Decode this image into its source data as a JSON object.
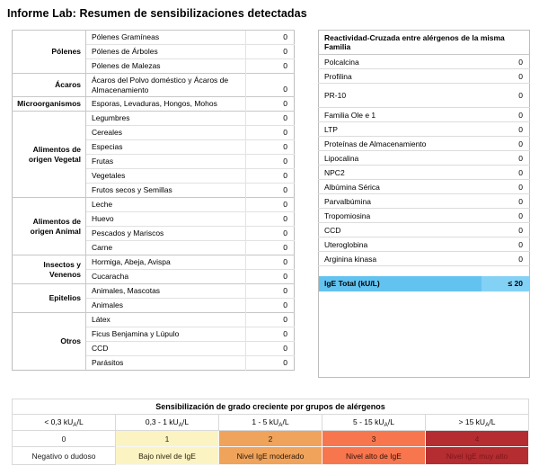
{
  "title": "Informe Lab: Resumen de sensibilizaciones detectadas",
  "allergen_table": {
    "groups": [
      {
        "name": "Pólenes",
        "items": [
          {
            "label": "Pólenes Gramíneas",
            "value": "0"
          },
          {
            "label": "Pólenes de Árboles",
            "value": "0"
          },
          {
            "label": "Pólenes de Malezas",
            "value": "0"
          }
        ]
      },
      {
        "name": "Ácaros",
        "items": [
          {
            "label": "Ácaros del Polvo doméstico y Ácaros de Almacenamiento",
            "value": "0",
            "tall": true
          }
        ]
      },
      {
        "name": "Microorganismos",
        "items": [
          {
            "label": "Esporas, Levaduras, Hongos, Mohos",
            "value": "0"
          }
        ]
      },
      {
        "name": "Alimentos de origen Vegetal",
        "items": [
          {
            "label": "Legumbres",
            "value": "0"
          },
          {
            "label": "Cereales",
            "value": "0"
          },
          {
            "label": "Especias",
            "value": "0"
          },
          {
            "label": "Frutas",
            "value": "0"
          },
          {
            "label": "Vegetales",
            "value": "0"
          },
          {
            "label": "Frutos secos y Semillas",
            "value": "0"
          }
        ]
      },
      {
        "name": "Alimentos de origen Animal",
        "items": [
          {
            "label": "Leche",
            "value": "0"
          },
          {
            "label": "Huevo",
            "value": "0"
          },
          {
            "label": "Pescados y Mariscos",
            "value": "0"
          },
          {
            "label": "Carne",
            "value": "0"
          }
        ]
      },
      {
        "name": "Insectos y Venenos",
        "items": [
          {
            "label": "Hormiga, Abeja, Avispa",
            "value": "0"
          },
          {
            "label": "Cucaracha",
            "value": "0"
          }
        ]
      },
      {
        "name": "Epitelios",
        "items": [
          {
            "label": "Animales, Mascotas",
            "value": "0"
          },
          {
            "label": "Animales",
            "value": "0"
          }
        ]
      },
      {
        "name": "Otros",
        "items": [
          {
            "label": "Látex",
            "value": "0"
          },
          {
            "label": "Ficus Benjamina y Lúpulo",
            "value": "0"
          },
          {
            "label": "CCD",
            "value": "0"
          },
          {
            "label": "Parásitos",
            "value": "0"
          }
        ]
      }
    ]
  },
  "cross_reactivity_table": {
    "header": "Reactividad-Cruzada entre alérgenos de la misma Familia",
    "rows": [
      {
        "label": "Polcalcina",
        "value": "0"
      },
      {
        "label": "Profilina",
        "value": "0"
      },
      {
        "label": "PR-10",
        "value": "0",
        "tall": true
      },
      {
        "label": "Familia Ole e 1",
        "value": "0"
      },
      {
        "label": "LTP",
        "value": "0"
      },
      {
        "label": "Proteínas de Almacenamiento",
        "value": "0"
      },
      {
        "label": "Lipocalina",
        "value": "0"
      },
      {
        "label": "NPC2",
        "value": "0"
      },
      {
        "label": "Albúmina Sérica",
        "value": "0"
      },
      {
        "label": "Parvalbúmina",
        "value": "0"
      },
      {
        "label": "Tropomiosina",
        "value": "0"
      },
      {
        "label": "CCD",
        "value": "0"
      },
      {
        "label": "Uteroglobina",
        "value": "0"
      },
      {
        "label": "Arginina kinasa",
        "value": "0"
      }
    ],
    "total_row": {
      "label": "IgE Total (kU/L)",
      "value": "≤ 20",
      "label_bg": "#63c3f0",
      "value_bg": "#84d1f6",
      "text_color": "#000000"
    }
  },
  "legend_table": {
    "title": "Sensibilización de grado creciente por grupos de alérgenos",
    "columns": [
      {
        "range_parts": [
          {
            "t": "< 0,3 kU"
          },
          {
            "t": "A",
            "sub": true
          },
          {
            "t": "/L"
          }
        ],
        "grade": "0",
        "label": "Negativo o dudoso",
        "bg": "#ffffff",
        "text_color": "#1a1a1a"
      },
      {
        "range_parts": [
          {
            "t": "0,3 - 1 kU"
          },
          {
            "t": "A",
            "sub": true
          },
          {
            "t": "/L"
          }
        ],
        "grade": "1",
        "label": "Bajo nivel de IgE",
        "bg": "#fcf3c3",
        "text_color": "#2b2410"
      },
      {
        "range_parts": [
          {
            "t": "1 - 5 kU"
          },
          {
            "t": "A",
            "sub": true
          },
          {
            "t": "/L"
          }
        ],
        "grade": "2",
        "label": "Nivel IgE moderado",
        "bg": "#efa35b",
        "text_color": "#2e1a08"
      },
      {
        "range_parts": [
          {
            "t": "5 - 15 kU"
          },
          {
            "t": "A",
            "sub": true
          },
          {
            "t": "/L"
          }
        ],
        "grade": "3",
        "label": "Nivel alto de IgE",
        "bg": "#f8764e",
        "text_color": "#2e120a"
      },
      {
        "range_parts": [
          {
            "t": "> 15 kU"
          },
          {
            "t": "A",
            "sub": true
          },
          {
            "t": "/L"
          }
        ],
        "grade": "4",
        "label": "Nivel IgE muy alto",
        "bg": "#b52d31",
        "text_color": "#7d161a"
      }
    ]
  },
  "colors": {
    "ige_total_label_bg": "#63c3f0",
    "ige_total_value_bg": "#84d1f6",
    "grade1_bg": "#fcf3c3",
    "grade2_bg": "#efa35b",
    "grade3_bg": "#f8764e",
    "grade4_bg": "#b52d31"
  }
}
